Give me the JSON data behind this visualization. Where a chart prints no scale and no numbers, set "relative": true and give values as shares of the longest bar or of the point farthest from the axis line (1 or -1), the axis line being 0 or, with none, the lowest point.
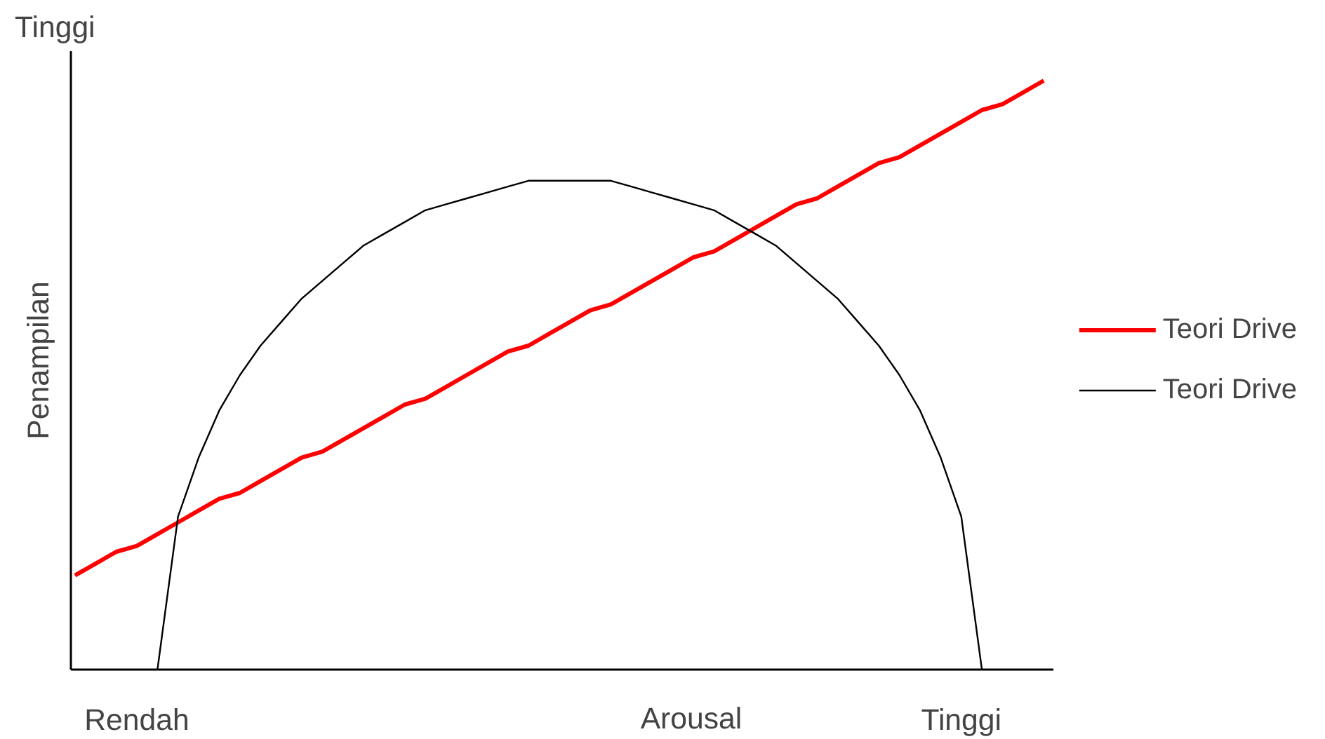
{
  "chart_data": {
    "type": "line",
    "relative": true,
    "xlabel": "Arousal",
    "ylabel": "Penampilan",
    "annotations": [
      "Tinggi"
    ],
    "legend": "right",
    "grid": false,
    "categories": [
      null,
      null,
      null,
      "Rendah",
      null,
      null,
      null,
      null,
      null,
      null,
      null,
      null,
      null,
      null,
      null,
      null,
      null,
      null,
      null,
      null,
      null,
      null,
      null,
      null,
      null,
      null,
      null,
      null,
      null,
      null,
      null,
      null,
      null,
      null,
      null,
      null,
      null,
      null,
      null,
      null,
      null,
      null,
      null,
      "Tinggi",
      null,
      null,
      null,
      null
    ],
    "series": [
      {
        "name": "Teori Drive",
        "color": "#ff0000",
        "values": [
          0.16,
          0.18,
          0.2,
          0.21,
          0.23,
          0.25,
          0.27,
          0.29,
          0.3,
          0.32,
          0.34,
          0.36,
          0.37,
          0.39,
          0.41,
          0.43,
          0.45,
          0.46,
          0.48,
          0.5,
          0.52,
          0.54,
          0.55,
          0.57,
          0.59,
          0.61,
          0.62,
          0.64,
          0.66,
          0.68,
          0.7,
          0.71,
          0.73,
          0.75,
          0.77,
          0.79,
          0.8,
          0.82,
          0.84,
          0.86,
          0.87,
          0.89,
          0.91,
          0.93,
          0.95,
          0.96,
          0.98,
          1.0
        ]
      },
      {
        "name": "Teori Drive",
        "color": "#000000",
        "values": [
          null,
          null,
          null,
          null,
          0,
          0.26,
          0.36,
          0.44,
          0.5,
          0.55,
          0.59,
          0.63,
          0.66,
          0.69,
          0.72,
          0.74,
          0.76,
          0.78,
          0.79,
          0.8,
          0.81,
          0.82,
          0.83,
          0.83,
          0.83,
          0.83,
          0.83,
          0.82,
          0.81,
          0.8,
          0.79,
          0.78,
          0.76,
          0.74,
          0.72,
          0.69,
          0.66,
          0.63,
          0.59,
          0.55,
          0.5,
          0.44,
          0.36,
          0.26,
          0,
          null,
          null,
          null
        ]
      }
    ]
  }
}
